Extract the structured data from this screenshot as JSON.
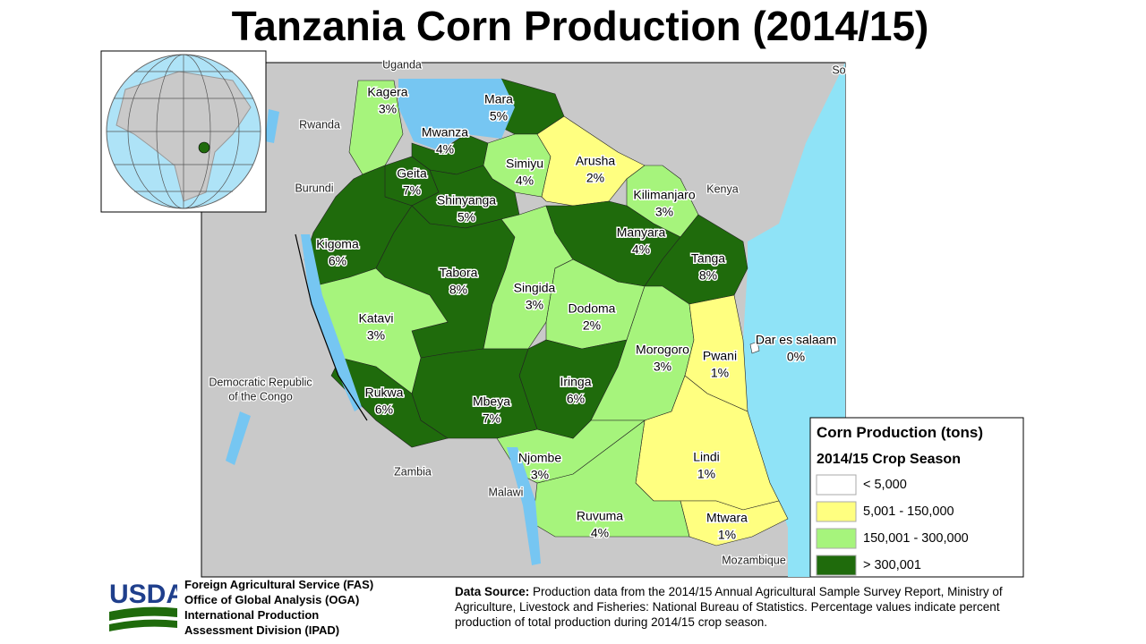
{
  "title": "Tanzania Corn Production (2014/15)",
  "regions": [
    {
      "name": "Kagera",
      "share": "3%"
    },
    {
      "name": "Mara",
      "share": "5%"
    },
    {
      "name": "Mwanza",
      "share": "4%"
    },
    {
      "name": "Simiyu",
      "share": "4%"
    },
    {
      "name": "Arusha",
      "share": "2%"
    },
    {
      "name": "Geita",
      "share": "7%"
    },
    {
      "name": "Shinyanga",
      "share": "5%"
    },
    {
      "name": "Kilimanjaro",
      "share": "3%"
    },
    {
      "name": "Manyara",
      "share": "4%"
    },
    {
      "name": "Kigoma",
      "share": "6%"
    },
    {
      "name": "Tanga",
      "share": "8%"
    },
    {
      "name": "Tabora",
      "share": "8%"
    },
    {
      "name": "Singida",
      "share": "3%"
    },
    {
      "name": "Dodoma",
      "share": "2%"
    },
    {
      "name": "Katavi",
      "share": "3%"
    },
    {
      "name": "Dar es salaam",
      "share": "0%"
    },
    {
      "name": "Morogoro",
      "share": "3%"
    },
    {
      "name": "Pwani",
      "share": "1%"
    },
    {
      "name": "Iringa",
      "share": "6%"
    },
    {
      "name": "Rukwa",
      "share": "6%"
    },
    {
      "name": "Mbeya",
      "share": "7%"
    },
    {
      "name": "Njombe",
      "share": "3%"
    },
    {
      "name": "Lindi",
      "share": "1%"
    },
    {
      "name": "Ruvuma",
      "share": "4%"
    },
    {
      "name": "Mtwara",
      "share": "1%"
    }
  ],
  "countries": [
    "Uganda",
    "Rwanda",
    "Burundi",
    "Kenya",
    "Democratic Republic",
    "of the Congo",
    "Zambia",
    "Malawi",
    "Mozambique",
    "So"
  ],
  "legend": {
    "title": "Corn Production (tons)",
    "subtitle": "2014/15 Crop Season",
    "items": [
      {
        "label": "< 5,000",
        "color": "#ffffff"
      },
      {
        "label": "5,001 - 150,000",
        "color": "#ffff80"
      },
      {
        "label": "150,001 - 300,000",
        "color": "#a6f47c"
      },
      {
        "label": "> 300,001",
        "color": "#1f6b0c"
      }
    ]
  },
  "footer": {
    "logo": "USDA",
    "agency": [
      "Foreign Agricultural Service (FAS)",
      "Office of Global Analysis  (OGA)",
      "International Production",
      "Assessment Division (IPAD)"
    ],
    "source_label": "Data Source:",
    "source_text": "Production data from the 2014/15 Annual Agricultural Sample Survey Report, Ministry of Agriculture,  Livestock and Fisheries: National Bureau of Statistics.  Percentage values indicate percent production of total production during 2014/15 crop season."
  }
}
